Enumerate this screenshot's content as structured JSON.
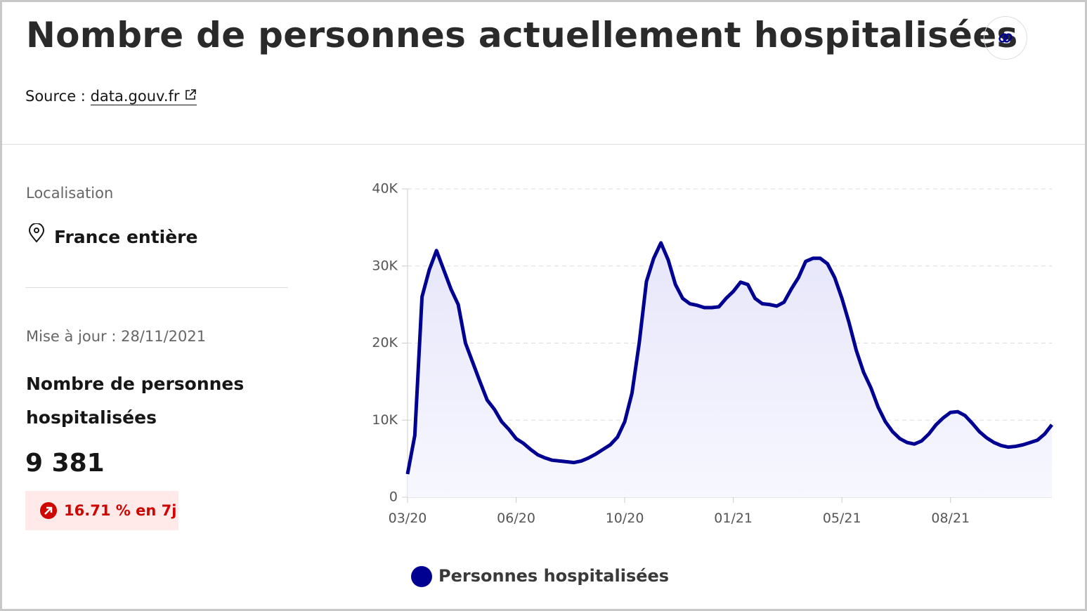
{
  "header": {
    "title": "Nombre de personnes actuellement hospitalisées",
    "source_label": "Source :",
    "source_link": "data.gouv.fr"
  },
  "panel": {
    "location_label": "Localisation",
    "location": "France entière",
    "updated": "Mise à jour : 28/11/2021",
    "metric": "Nombre de personnes hospitalisées",
    "value": "9 381",
    "change": "16.71 % en 7j"
  },
  "chart_data": {
    "type": "line",
    "categories": [
      "03/20",
      null,
      null,
      null,
      null,
      null,
      null,
      null,
      null,
      null,
      null,
      null,
      null,
      null,
      null,
      "06/20",
      null,
      null,
      null,
      null,
      null,
      null,
      null,
      null,
      null,
      null,
      null,
      null,
      null,
      null,
      "10/20",
      null,
      null,
      null,
      null,
      null,
      null,
      null,
      null,
      null,
      null,
      null,
      null,
      null,
      null,
      "01/21",
      null,
      null,
      null,
      null,
      null,
      null,
      null,
      null,
      null,
      null,
      null,
      null,
      null,
      null,
      "05/21",
      null,
      null,
      null,
      null,
      null,
      null,
      null,
      null,
      null,
      null,
      null,
      null,
      null,
      null,
      "08/21",
      null,
      null,
      null,
      null,
      null,
      null,
      null,
      null,
      null,
      null,
      null,
      null,
      null,
      null
    ],
    "series": [
      {
        "name": "Personnes hospitalisées",
        "color": "#000091",
        "values": [
          3000,
          8000,
          26000,
          29500,
          32000,
          29500,
          27000,
          25000,
          20000,
          17500,
          15000,
          12600,
          11400,
          9800,
          8800,
          7600,
          7000,
          6200,
          5500,
          5100,
          4800,
          4700,
          4600,
          4500,
          4700,
          5100,
          5600,
          6200,
          6800,
          7800,
          9800,
          13500,
          20000,
          28000,
          31000,
          33000,
          30800,
          27600,
          25800,
          25100,
          24900,
          24600,
          24600,
          24700,
          25800,
          26700,
          27900,
          27600,
          25800,
          25100,
          25000,
          24800,
          25300,
          27000,
          28500,
          30600,
          31000,
          31000,
          30300,
          28500,
          25800,
          22600,
          19000,
          16200,
          14200,
          11700,
          9800,
          8500,
          7600,
          7100,
          6900,
          7300,
          8200,
          9400,
          10300,
          11000,
          11100,
          10600,
          9600,
          8500,
          7700,
          7100,
          6700,
          6500,
          6600,
          6800,
          7100,
          7400,
          8200,
          9400
        ]
      }
    ],
    "ylim": [
      0,
      40000
    ],
    "yticks": [
      0,
      {
        "value": 10000,
        "label": "10K"
      },
      {
        "value": 20000,
        "label": "20K"
      },
      {
        "value": 30000,
        "label": "30K"
      },
      {
        "value": 40000,
        "label": "40K"
      }
    ],
    "grid": true
  }
}
